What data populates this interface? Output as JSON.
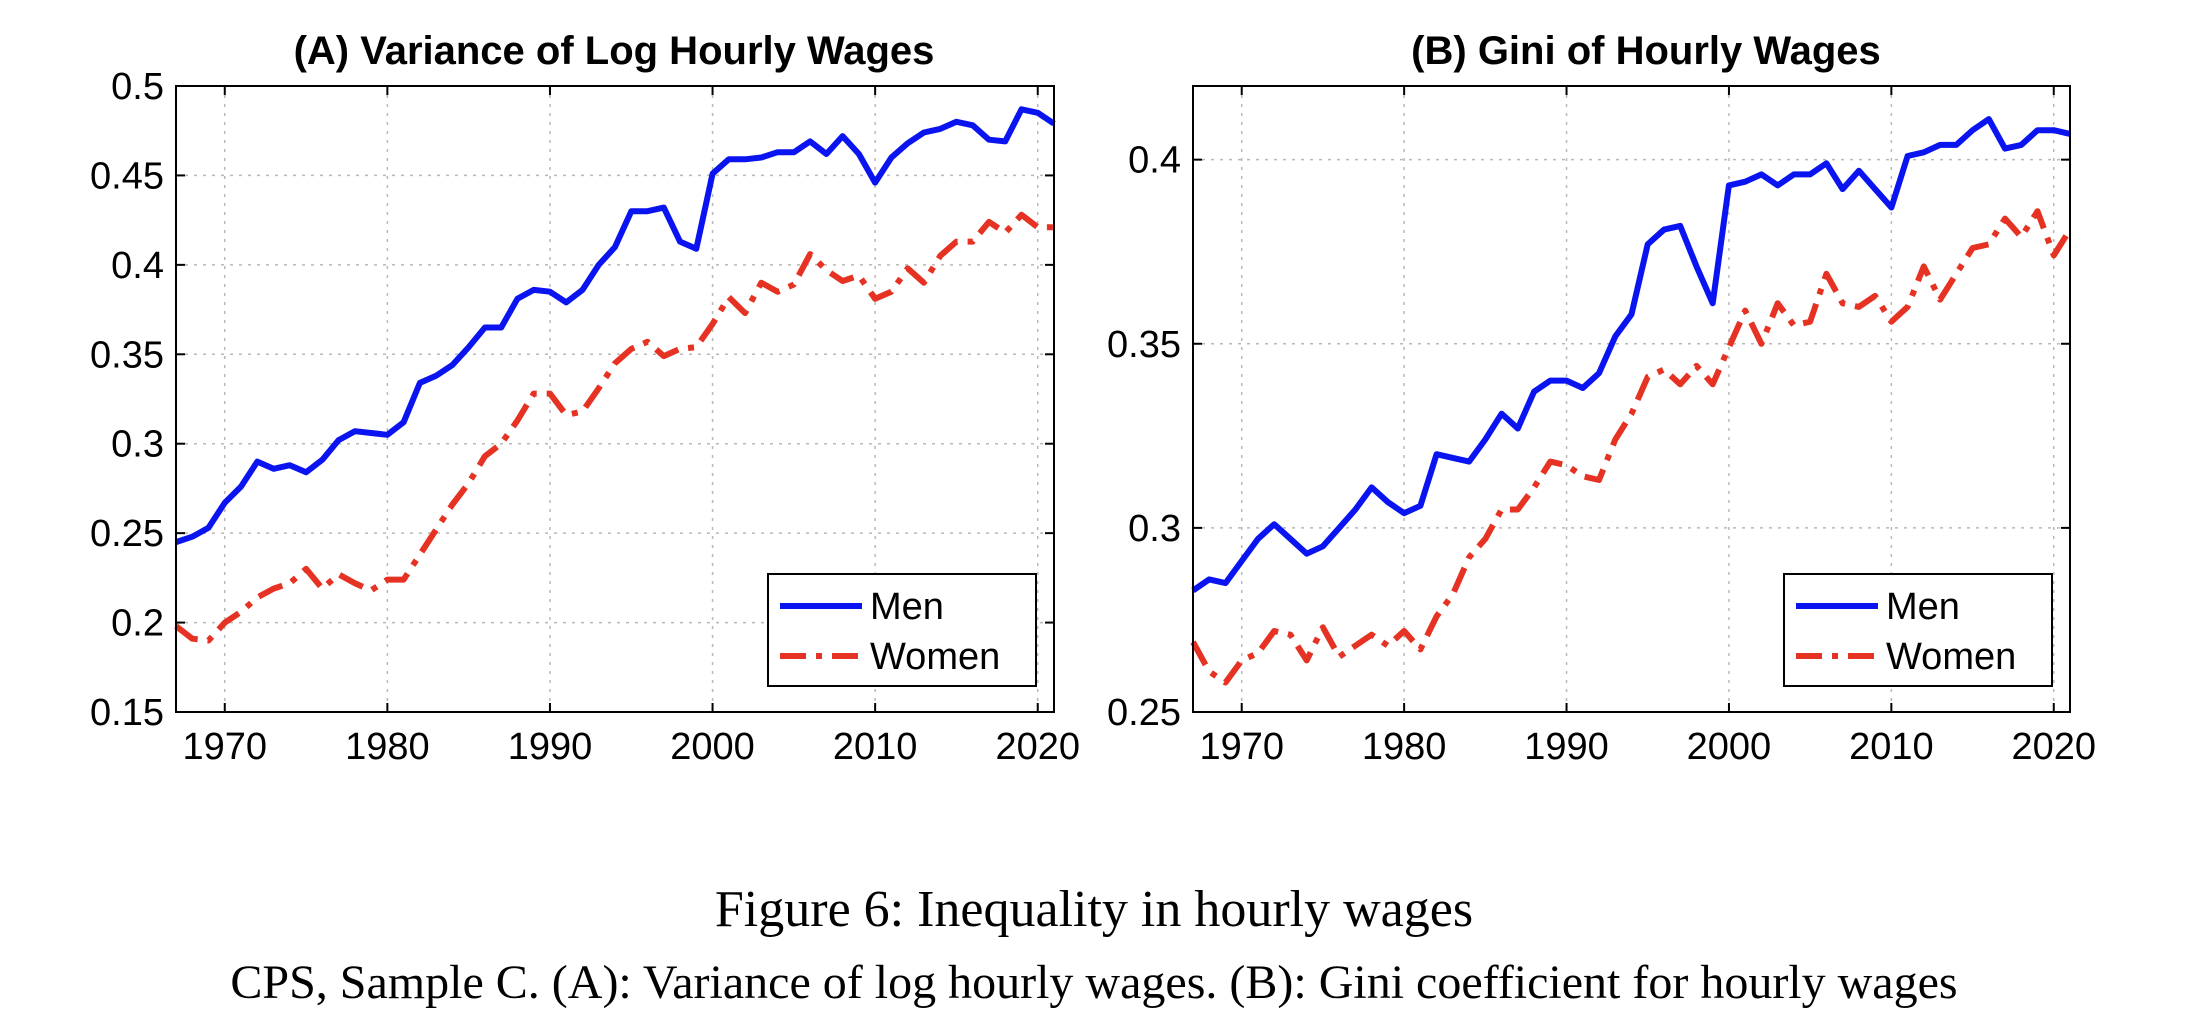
{
  "figure": {
    "caption_title": "Figure 6: Inequality in hourly wages",
    "caption_sub": "CPS, Sample C. (A): Variance of log hourly wages. (B): Gini coefficient for hourly wages"
  },
  "colors": {
    "men": "#0a14f0",
    "women": "#e63222",
    "grid": "#b8b8b8"
  },
  "chart_data": [
    {
      "type": "line",
      "title": "(A) Variance of Log Hourly Wages",
      "xlabel": "",
      "ylabel": "",
      "xlim": [
        1967,
        2021
      ],
      "ylim": [
        0.15,
        0.5
      ],
      "xticks": [
        1970,
        1980,
        1990,
        2000,
        2010,
        2020
      ],
      "yticks": [
        0.15,
        0.2,
        0.25,
        0.3,
        0.35,
        0.4,
        0.45,
        0.5
      ],
      "ytick_labels": [
        "0.15",
        "0.2",
        "0.25",
        "0.3",
        "0.35",
        "0.4",
        "0.45",
        "0.5"
      ],
      "grid": true,
      "legend": "bottom-right",
      "x": [
        1967,
        1968,
        1969,
        1970,
        1971,
        1972,
        1973,
        1974,
        1975,
        1976,
        1977,
        1978,
        1979,
        1980,
        1981,
        1982,
        1983,
        1984,
        1985,
        1986,
        1987,
        1988,
        1989,
        1990,
        1991,
        1992,
        1993,
        1994,
        1995,
        1996,
        1997,
        1998,
        1999,
        2000,
        2001,
        2002,
        2003,
        2004,
        2005,
        2006,
        2007,
        2008,
        2009,
        2010,
        2011,
        2012,
        2013,
        2014,
        2015,
        2016,
        2017,
        2018,
        2019,
        2020,
        2021
      ],
      "series": [
        {
          "name": "Men",
          "style": "solid",
          "values": [
            0.245,
            0.248,
            0.253,
            0.267,
            0.276,
            0.29,
            0.286,
            0.288,
            0.284,
            0.291,
            0.302,
            0.307,
            0.306,
            0.305,
            0.312,
            0.334,
            0.338,
            0.344,
            0.354,
            0.365,
            0.365,
            0.381,
            0.386,
            0.385,
            0.379,
            0.386,
            0.4,
            0.41,
            0.43,
            0.43,
            0.432,
            0.413,
            0.409,
            0.451,
            0.459,
            0.459,
            0.46,
            0.463,
            0.463,
            0.469,
            0.462,
            0.472,
            0.462,
            0.446,
            0.46,
            0.468,
            0.474,
            0.476,
            0.48,
            0.478,
            0.47,
            0.469,
            0.487,
            0.485,
            0.479
          ]
        },
        {
          "name": "Women",
          "style": "dashdot",
          "values": [
            0.198,
            0.191,
            0.19,
            0.2,
            0.206,
            0.214,
            0.219,
            0.222,
            0.23,
            0.219,
            0.227,
            0.222,
            0.218,
            0.224,
            0.224,
            0.238,
            0.252,
            0.266,
            0.278,
            0.293,
            0.3,
            0.313,
            0.328,
            0.328,
            0.316,
            0.318,
            0.331,
            0.345,
            0.353,
            0.357,
            0.349,
            0.353,
            0.354,
            0.367,
            0.382,
            0.373,
            0.39,
            0.385,
            0.389,
            0.406,
            0.397,
            0.391,
            0.394,
            0.381,
            0.385,
            0.398,
            0.39,
            0.405,
            0.413,
            0.413,
            0.424,
            0.418,
            0.428,
            0.421,
            0.421
          ]
        }
      ]
    },
    {
      "type": "line",
      "title": "(B) Gini of Hourly Wages",
      "xlabel": "",
      "ylabel": "",
      "xlim": [
        1967,
        2021
      ],
      "ylim": [
        0.25,
        0.42
      ],
      "xticks": [
        1970,
        1980,
        1990,
        2000,
        2010,
        2020
      ],
      "yticks": [
        0.25,
        0.3,
        0.35,
        0.4
      ],
      "ytick_labels": [
        "0.25",
        "0.3",
        "0.35",
        "0.4"
      ],
      "grid": true,
      "legend": "bottom-right",
      "x": [
        1967,
        1968,
        1969,
        1970,
        1971,
        1972,
        1973,
        1974,
        1975,
        1976,
        1977,
        1978,
        1979,
        1980,
        1981,
        1982,
        1983,
        1984,
        1985,
        1986,
        1987,
        1988,
        1989,
        1990,
        1991,
        1992,
        1993,
        1994,
        1995,
        1996,
        1997,
        1998,
        1999,
        2000,
        2001,
        2002,
        2003,
        2004,
        2005,
        2006,
        2007,
        2008,
        2009,
        2010,
        2011,
        2012,
        2013,
        2014,
        2015,
        2016,
        2017,
        2018,
        2019,
        2020,
        2021
      ],
      "series": [
        {
          "name": "Men",
          "style": "solid",
          "values": [
            0.283,
            0.286,
            0.285,
            0.291,
            0.297,
            0.301,
            0.297,
            0.293,
            0.295,
            0.3,
            0.305,
            0.311,
            0.307,
            0.304,
            0.306,
            0.32,
            0.319,
            0.318,
            0.324,
            0.331,
            0.327,
            0.337,
            0.34,
            0.34,
            0.338,
            0.342,
            0.352,
            0.358,
            0.377,
            0.381,
            0.382,
            0.371,
            0.361,
            0.393,
            0.394,
            0.396,
            0.393,
            0.396,
            0.396,
            0.399,
            0.392,
            0.397,
            0.392,
            0.387,
            0.401,
            0.402,
            0.404,
            0.404,
            0.408,
            0.411,
            0.403,
            0.404,
            0.408,
            0.408,
            0.407
          ]
        },
        {
          "name": "Women",
          "style": "dashdot",
          "values": [
            0.269,
            0.261,
            0.258,
            0.264,
            0.266,
            0.272,
            0.271,
            0.264,
            0.273,
            0.265,
            0.268,
            0.271,
            0.268,
            0.272,
            0.267,
            0.276,
            0.282,
            0.292,
            0.297,
            0.305,
            0.305,
            0.311,
            0.318,
            0.317,
            0.314,
            0.313,
            0.324,
            0.331,
            0.341,
            0.343,
            0.339,
            0.344,
            0.339,
            0.349,
            0.359,
            0.35,
            0.361,
            0.355,
            0.356,
            0.369,
            0.361,
            0.36,
            0.363,
            0.356,
            0.36,
            0.371,
            0.362,
            0.369,
            0.376,
            0.377,
            0.384,
            0.379,
            0.386,
            0.374,
            0.381
          ]
        }
      ]
    }
  ]
}
